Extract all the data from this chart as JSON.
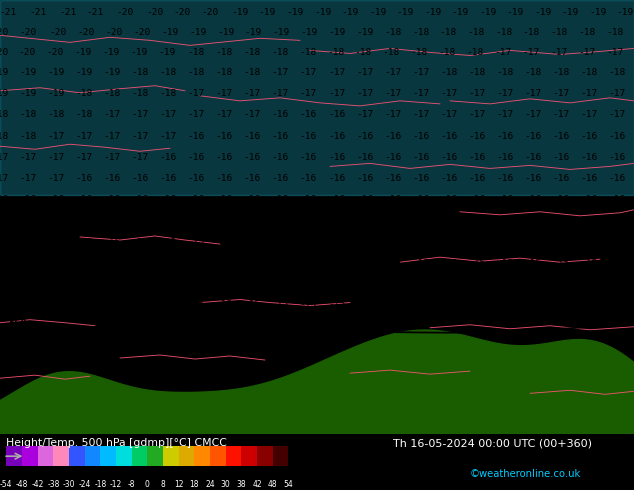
{
  "title_left": "Height/Temp. 500 hPa [gdmp][°C] CMCC",
  "title_right": "Th 16-05-2024 00:00 UTC (00+360)",
  "credit": "©weatheronline.co.uk",
  "sky_color": "#00CCFF",
  "terrain_color": "#1a5c00",
  "fig_width": 6.34,
  "fig_height": 4.9,
  "dpi": 100,
  "colorbar_colors": [
    "#7700BB",
    "#AA00DD",
    "#DD66DD",
    "#FF88BB",
    "#3355FF",
    "#1188FF",
    "#00BBFF",
    "#00DDDD",
    "#00CC66",
    "#22AA22",
    "#CCCC00",
    "#DDAA00",
    "#FF8800",
    "#FF5500",
    "#FF1100",
    "#CC0000",
    "#880000",
    "#440000"
  ],
  "colorbar_ticks": [
    "-54",
    "-48",
    "-42",
    "-38",
    "-30",
    "-24",
    "-18",
    "-12",
    "-8",
    "0",
    "8",
    "12",
    "18",
    "24",
    "30",
    "38",
    "42",
    "48",
    "54"
  ]
}
